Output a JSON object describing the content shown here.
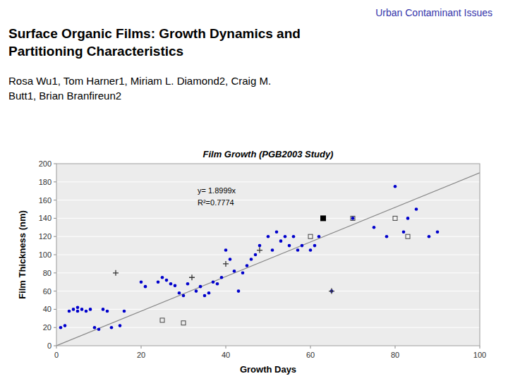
{
  "header": "Urban Contaminant Issues",
  "heading": "Surface Organic Films: Growth Dynamics and\nPartitioning Characteristics",
  "authors": "Rosa Wu1, Tom Harner1, Miriam L. Diamond2, Craig M.\nButt1, Brian Branfireun2",
  "chart_data": {
    "type": "scatter",
    "title": "Film Growth (PGB2003 Study)",
    "x_label": "Growth Days",
    "y_label": "Film Thickness (nm)",
    "annotations": [
      "y= 1.8999x",
      "R²=0.7774"
    ],
    "xlim": [
      0,
      100
    ],
    "ylim": [
      0,
      200
    ],
    "xticks": [
      0,
      20,
      40,
      60,
      80,
      100
    ],
    "yticks": [
      0,
      20,
      40,
      60,
      80,
      100,
      120,
      140,
      160,
      180,
      200
    ],
    "grid": "y",
    "series": [
      {
        "type": "line",
        "color": "#888888",
        "line_style": "solid",
        "x": [
          0,
          100
        ],
        "values": [
          0,
          189.99
        ]
      },
      {
        "type": "scatter",
        "color": "#0000CC",
        "marker": "circle",
        "x": [
          1,
          2,
          3,
          4,
          5,
          5,
          6,
          7,
          8,
          9,
          10,
          11,
          12,
          13,
          15,
          16,
          20,
          21,
          24,
          25,
          26,
          27,
          28,
          29,
          30,
          31,
          33,
          34,
          35,
          36,
          37,
          38,
          39,
          40,
          41,
          42,
          43,
          44,
          45,
          46,
          47,
          48,
          50,
          51,
          52,
          53,
          54,
          55,
          56,
          57,
          58,
          60,
          61,
          62,
          63,
          65,
          70,
          75,
          78,
          80,
          82,
          83,
          85,
          88,
          90
        ],
        "values": [
          20,
          22,
          38,
          40,
          38,
          42,
          40,
          38,
          40,
          20,
          18,
          40,
          38,
          20,
          22,
          38,
          70,
          65,
          70,
          75,
          72,
          68,
          66,
          58,
          55,
          68,
          60,
          65,
          55,
          58,
          70,
          68,
          75,
          105,
          95,
          82,
          60,
          80,
          88,
          95,
          100,
          110,
          120,
          105,
          125,
          115,
          120,
          110,
          120,
          105,
          110,
          105,
          110,
          120,
          140,
          60,
          140,
          130,
          120,
          175,
          125,
          140,
          150,
          120,
          125
        ]
      },
      {
        "type": "scatter",
        "color": "#333333",
        "marker": "plus",
        "x": [
          14,
          32,
          40,
          48,
          65
        ],
        "values": [
          80,
          75,
          90,
          105,
          60
        ]
      },
      {
        "type": "scatter",
        "color": "#444444",
        "marker": "open-square",
        "x": [
          25,
          30,
          60,
          70,
          80,
          83
        ],
        "values": [
          28,
          25,
          120,
          140,
          140,
          120
        ]
      },
      {
        "type": "scatter",
        "color": "#000000",
        "marker": "square",
        "x": [
          63
        ],
        "values": [
          140
        ]
      }
    ]
  }
}
